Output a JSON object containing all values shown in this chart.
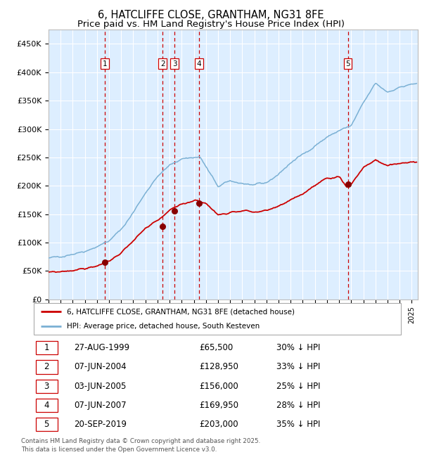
{
  "title": "6, HATCLIFFE CLOSE, GRANTHAM, NG31 8FE",
  "subtitle": "Price paid vs. HM Land Registry's House Price Index (HPI)",
  "title_fontsize": 10.5,
  "subtitle_fontsize": 9.5,
  "bg_color": "#ddeeff",
  "ylabel": "",
  "ylim": [
    0,
    475000
  ],
  "yticks": [
    0,
    50000,
    100000,
    150000,
    200000,
    250000,
    300000,
    350000,
    400000,
    450000
  ],
  "ytick_labels": [
    "£0",
    "£50K",
    "£100K",
    "£150K",
    "£200K",
    "£250K",
    "£300K",
    "£350K",
    "£400K",
    "£450K"
  ],
  "hpi_color": "#7ab0d4",
  "sale_color": "#cc0000",
  "dot_color": "#880000",
  "vline_color": "#cc0000",
  "grid_color": "#ffffff",
  "sale_dates_year": [
    1999.647,
    2004.435,
    2005.418,
    2007.435,
    2019.722
  ],
  "sale_prices": [
    65500,
    128950,
    156000,
    169950,
    203000
  ],
  "sale_labels": [
    "1",
    "2",
    "3",
    "4",
    "5"
  ],
  "transaction_rows": [
    {
      "label": "1",
      "date": "27-AUG-1999",
      "price": "£65,500",
      "hpi_note": "30% ↓ HPI"
    },
    {
      "label": "2",
      "date": "07-JUN-2004",
      "price": "£128,950",
      "hpi_note": "33% ↓ HPI"
    },
    {
      "label": "3",
      "date": "03-JUN-2005",
      "price": "£156,000",
      "hpi_note": "25% ↓ HPI"
    },
    {
      "label": "4",
      "date": "07-JUN-2007",
      "price": "£169,950",
      "hpi_note": "28% ↓ HPI"
    },
    {
      "label": "5",
      "date": "20-SEP-2019",
      "price": "£203,000",
      "hpi_note": "35% ↓ HPI"
    }
  ],
  "legend_entries": [
    "6, HATCLIFFE CLOSE, GRANTHAM, NG31 8FE (detached house)",
    "HPI: Average price, detached house, South Kesteven"
  ],
  "footnote": "Contains HM Land Registry data © Crown copyright and database right 2025.\nThis data is licensed under the Open Government Licence v3.0."
}
